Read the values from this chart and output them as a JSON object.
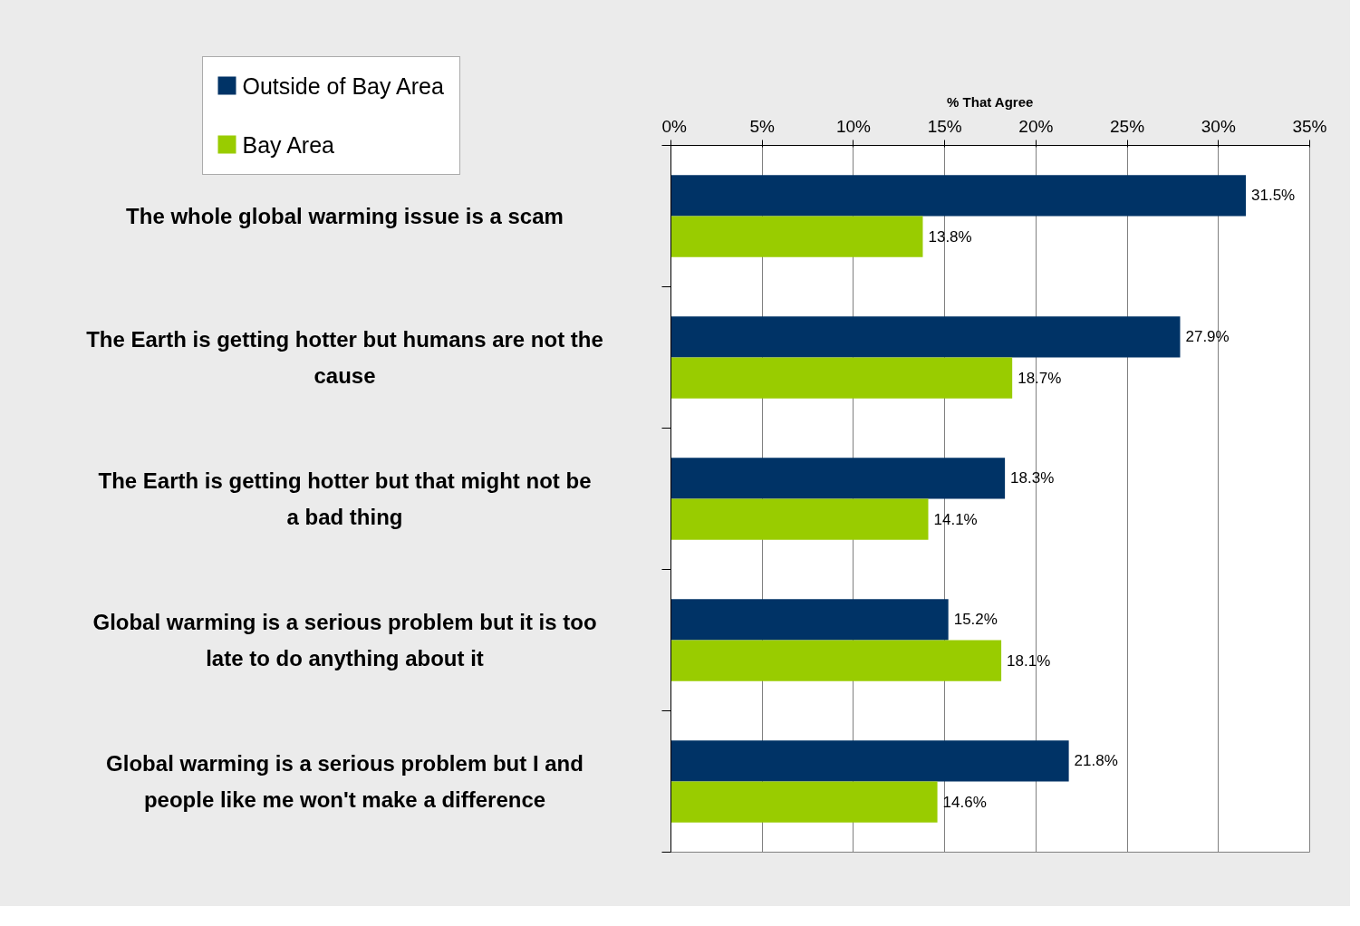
{
  "chart_data": {
    "type": "bar",
    "orientation": "horizontal",
    "xlabel": "% That Agree",
    "categories": [
      "The whole global warming issue is a scam",
      "The Earth is getting hotter but humans are not the cause",
      "The Earth is getting hotter but that might not be a bad thing",
      "Global warming is a serious problem but it is too late to do anything about it",
      "Global warming is a serious problem but I and people like me won't make a difference"
    ],
    "series": [
      {
        "name": "Outside of Bay Area",
        "color": "#003366",
        "values": [
          31.5,
          27.9,
          18.3,
          15.2,
          21.8
        ],
        "value_labels": [
          "31.5%",
          "27.9%",
          "18.3%",
          "15.2%",
          "21.8%"
        ]
      },
      {
        "name": "Bay Area",
        "color": "#99cc00",
        "values": [
          13.8,
          18.7,
          14.1,
          18.1,
          14.6
        ],
        "value_labels": [
          "13.8%",
          "18.7%",
          "14.1%",
          "18.1%",
          "14.6%"
        ]
      }
    ],
    "xlim": [
      0,
      35
    ],
    "xticks": [
      {
        "value": 0,
        "label": "0%"
      },
      {
        "value": 5,
        "label": "5%"
      },
      {
        "value": 10,
        "label": "10%"
      },
      {
        "value": 15,
        "label": "15%"
      },
      {
        "value": 20,
        "label": "20%"
      },
      {
        "value": 25,
        "label": "25%"
      },
      {
        "value": 30,
        "label": "30%"
      },
      {
        "value": 35,
        "label": "35%"
      }
    ],
    "grid": "x",
    "legend": "top left"
  }
}
